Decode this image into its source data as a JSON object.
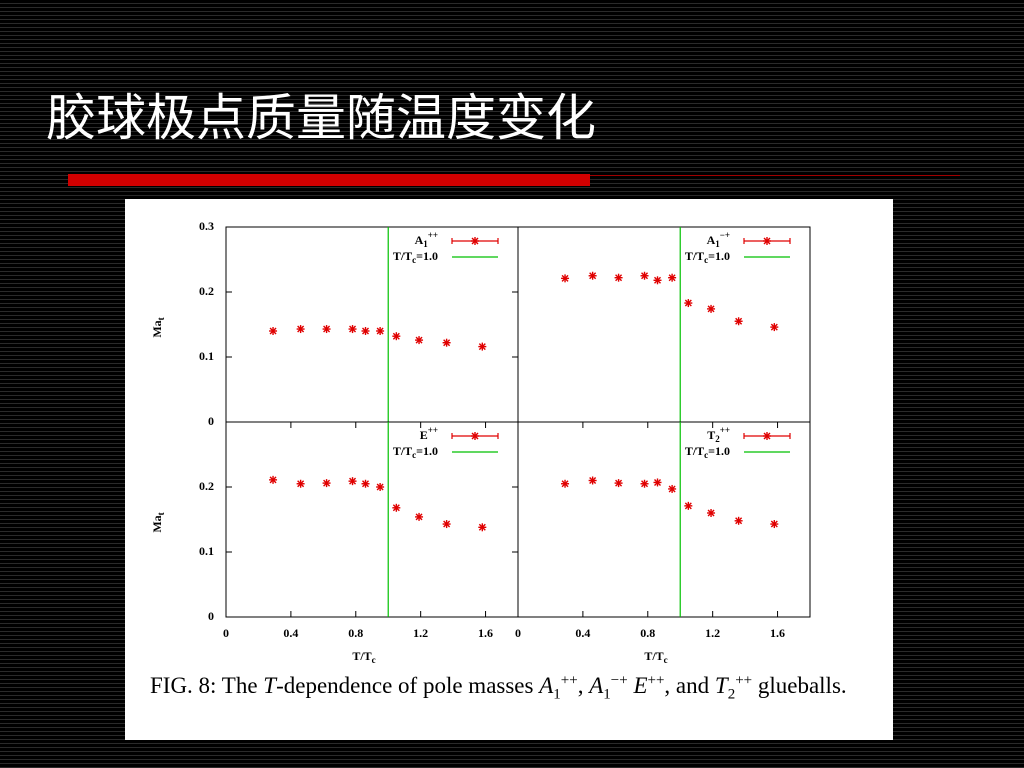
{
  "title": "胶球极点质量随温度变化",
  "chart_data": [
    {
      "type": "scatter",
      "y_label": {
        "base": "Ma",
        "sub": "t"
      },
      "series": [
        {
          "name": {
            "base": "A",
            "sub": "1",
            "sup": "++"
          },
          "color": "#e00000",
          "x": [
            0.29,
            0.46,
            0.62,
            0.78,
            0.86,
            0.95,
            1.05,
            1.19,
            1.36,
            1.58
          ],
          "values": [
            0.14,
            0.143,
            0.143,
            0.143,
            0.14,
            0.14,
            0.132,
            0.126,
            0.122,
            0.116
          ]
        }
      ],
      "vline": {
        "value": 1.0,
        "color": "#00c000",
        "name": {
          "base": "T/T",
          "sub": "c",
          "rest": "=1.0"
        }
      },
      "xlim": [
        0,
        1.8
      ],
      "ylim": [
        0,
        0.3
      ],
      "yticks": [
        0,
        0.1,
        0.2,
        0.3
      ]
    },
    {
      "type": "scatter",
      "series": [
        {
          "name": {
            "base": "A",
            "sub": "1",
            "sup": "−+"
          },
          "color": "#e00000",
          "x": [
            0.29,
            0.46,
            0.62,
            0.78,
            0.86,
            0.95,
            1.05,
            1.19,
            1.36,
            1.58
          ],
          "values": [
            0.221,
            0.225,
            0.222,
            0.225,
            0.218,
            0.222,
            0.183,
            0.174,
            0.155,
            0.146
          ]
        }
      ],
      "vline": {
        "value": 1.0,
        "color": "#00c000",
        "name": {
          "base": "T/T",
          "sub": "c",
          "rest": "=1.0"
        }
      },
      "xlim": [
        0,
        1.8
      ],
      "ylim": [
        0,
        0.3
      ]
    },
    {
      "type": "scatter",
      "x_label": {
        "base": "T/T",
        "sub": "c"
      },
      "y_label": {
        "base": "Ma",
        "sub": "t"
      },
      "series": [
        {
          "name": {
            "base": "E",
            "sup": "++"
          },
          "color": "#e00000",
          "x": [
            0.29,
            0.46,
            0.62,
            0.78,
            0.86,
            0.95,
            1.05,
            1.19,
            1.36,
            1.58
          ],
          "values": [
            0.211,
            0.205,
            0.206,
            0.209,
            0.205,
            0.2,
            0.168,
            0.154,
            0.143,
            0.138
          ]
        }
      ],
      "vline": {
        "value": 1.0,
        "color": "#00c000",
        "name": {
          "base": "T/T",
          "sub": "c",
          "rest": "=1.0"
        }
      },
      "xlim": [
        0,
        1.8
      ],
      "ylim": [
        0,
        0.3
      ],
      "xticks": [
        0,
        0.4,
        0.8,
        1.2,
        1.6
      ],
      "yticks": [
        0,
        0.1,
        0.2
      ]
    },
    {
      "type": "scatter",
      "x_label": {
        "base": "T/T",
        "sub": "c"
      },
      "series": [
        {
          "name": {
            "base": "T",
            "sub": "2",
            "sup": "++"
          },
          "color": "#e00000",
          "x": [
            0.29,
            0.46,
            0.62,
            0.78,
            0.86,
            0.95,
            1.05,
            1.19,
            1.36,
            1.58
          ],
          "values": [
            0.205,
            0.21,
            0.206,
            0.205,
            0.207,
            0.197,
            0.171,
            0.16,
            0.148,
            0.143
          ]
        }
      ],
      "vline": {
        "value": 1.0,
        "color": "#00c000",
        "name": {
          "base": "T/T",
          "sub": "c",
          "rest": "=1.0"
        }
      },
      "xlim": [
        0,
        1.8
      ],
      "ylim": [
        0,
        0.3
      ],
      "xticks": [
        0,
        0.4,
        0.8,
        1.2,
        1.6
      ]
    }
  ],
  "caption": [
    {
      "text": "FIG. 8: The "
    },
    {
      "text": "T",
      "style": "i"
    },
    {
      "text": "-dependence of pole masses "
    },
    {
      "text": "A",
      "style": "i"
    },
    {
      "text": "1",
      "style": "sub"
    },
    {
      "text": "++",
      "style": "sup"
    },
    {
      "text": ", "
    },
    {
      "text": "A",
      "style": "i"
    },
    {
      "text": "1",
      "style": "sub"
    },
    {
      "text": "−+",
      "style": "sup"
    },
    {
      "text": " "
    },
    {
      "text": "E",
      "style": "i"
    },
    {
      "text": "++",
      "style": "sup"
    },
    {
      "text": ", and "
    },
    {
      "text": "T",
      "style": "i"
    },
    {
      "text": "2",
      "style": "sub"
    },
    {
      "text": "++",
      "style": "sup"
    },
    {
      "text": " glueballs."
    }
  ]
}
